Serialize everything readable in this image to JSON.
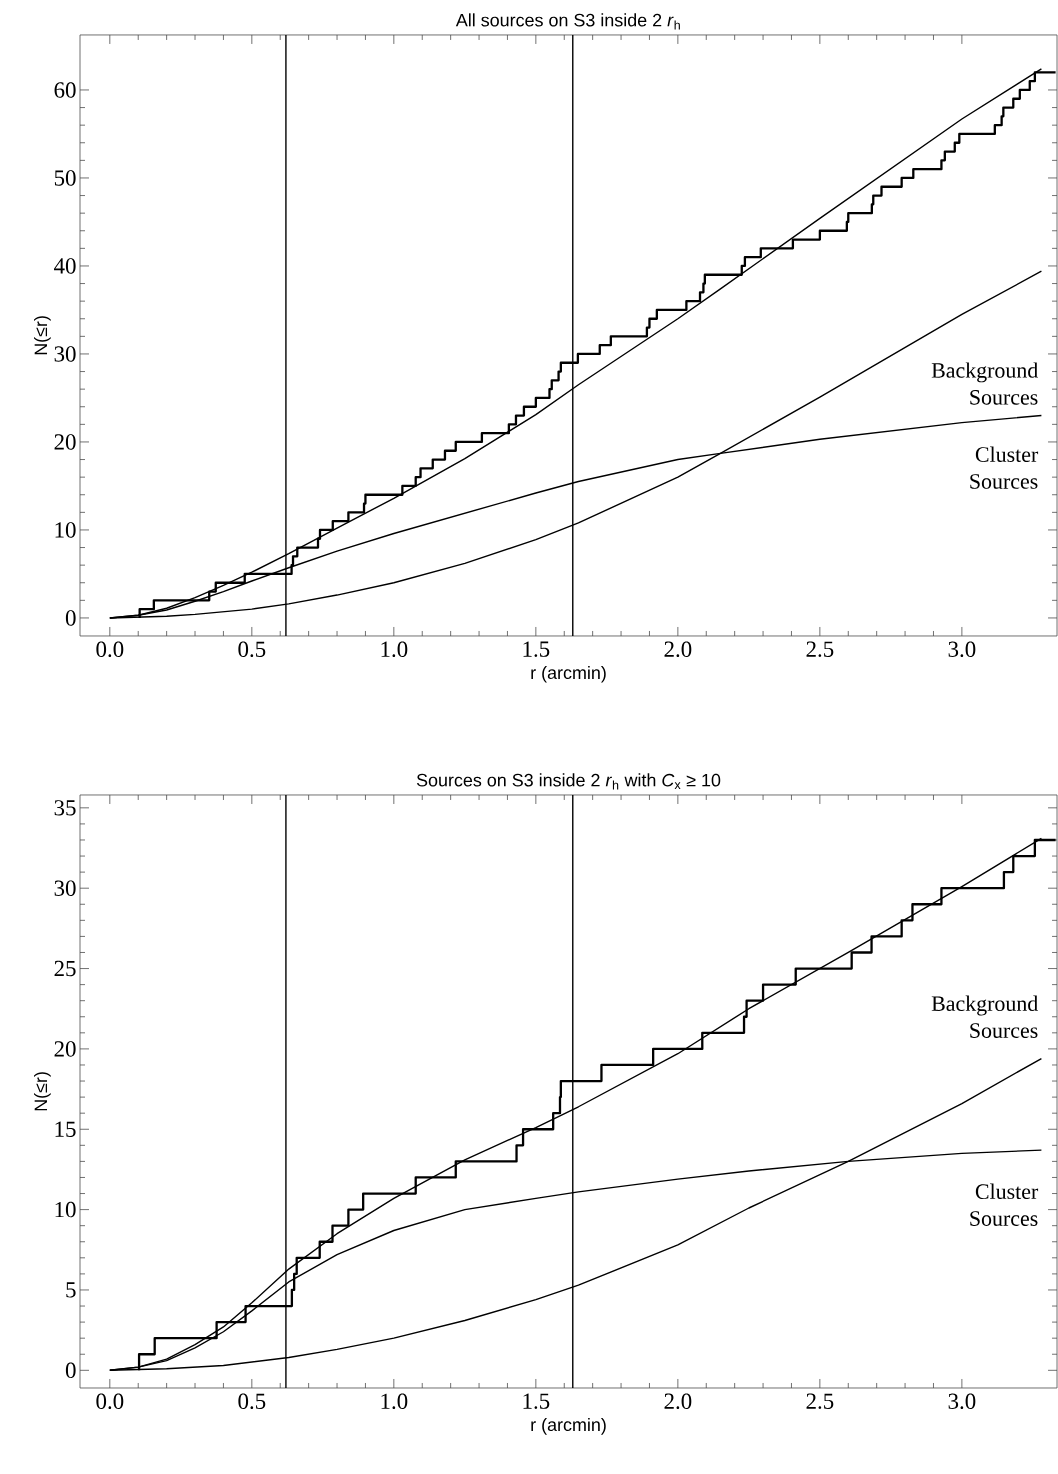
{
  "chart_data": [
    {
      "type": "line",
      "title": "All sources on S3 inside 2 *r*$_{h}$",
      "xlabel": "r (arcmin)",
      "ylabel": "N(≤r)",
      "xlim": [
        -0.105,
        3.335
      ],
      "ylim": [
        -2.05,
        66.25
      ],
      "xticks": [
        {
          "value": 0,
          "label": "0.0"
        },
        {
          "value": 0.5,
          "label": "0.5"
        },
        {
          "value": 1,
          "label": "1.0"
        },
        {
          "value": 1.5,
          "label": "1.5"
        },
        {
          "value": 2,
          "label": "2.0"
        },
        {
          "value": 2.5,
          "label": "2.5"
        },
        {
          "value": 3,
          "label": "3.0"
        }
      ],
      "yticks": [
        0,
        10,
        20,
        30,
        40,
        50,
        60
      ],
      "grid": false,
      "series": [
        {
          "type": "step",
          "color": "#000000",
          "x": [
            0.105,
            0.105,
            0.155,
            0.35,
            0.373,
            0.475,
            0.64,
            0.645,
            0.66,
            0.733,
            0.74,
            0.785,
            0.84,
            0.895,
            0.9,
            1.03,
            1.077,
            1.094,
            1.137,
            1.18,
            1.218,
            1.31,
            1.405,
            1.43,
            1.458,
            1.5,
            1.548,
            1.556,
            1.58,
            1.588,
            1.648,
            1.725,
            1.764,
            1.891,
            1.9,
            1.926,
            2.03,
            2.078,
            2.09,
            2.095,
            2.225,
            2.236,
            2.292,
            2.405,
            2.5,
            2.595,
            2.6,
            2.683,
            2.688,
            2.717,
            2.788,
            2.829,
            2.928,
            2.94,
            2.975,
            2.991,
            3.116,
            3.14,
            3.146,
            3.181,
            3.204,
            3.239,
            3.257,
            3.33
          ],
          "values": [
            0,
            1,
            2,
            3,
            4,
            5,
            6,
            7,
            8,
            9,
            10,
            11,
            12,
            13,
            14,
            15,
            16,
            17,
            18,
            19,
            20,
            21,
            22,
            23,
            24,
            25,
            26,
            27,
            28,
            29,
            30,
            31,
            32,
            33,
            34,
            35,
            36,
            37,
            38,
            39,
            40,
            41,
            42,
            43,
            44,
            45,
            46,
            47,
            48,
            49,
            50,
            51,
            52,
            53,
            54,
            55,
            56,
            57,
            58,
            59,
            60,
            61,
            62,
            62
          ]
        },
        {
          "color": "#000000",
          "x": [
            0,
            0.1,
            0.2,
            0.3,
            0.4,
            0.5,
            0.63,
            0.8,
            1.0,
            1.25,
            1.5,
            1.65,
            2.0,
            2.15,
            2.5,
            3.0,
            3.28
          ],
          "values": [
            0,
            0.3,
            1.1,
            2.3,
            3.7,
            5.2,
            7.3,
            10.2,
            13.6,
            18.1,
            23.1,
            26.5,
            34,
            37.4,
            45.4,
            56.7,
            62.4
          ]
        },
        {
          "color": "#000000",
          "x": [
            0,
            0.1,
            0.2,
            0.3,
            0.4,
            0.5,
            0.63,
            0.8,
            1.0,
            1.25,
            1.5,
            1.65,
            2.0,
            2.15,
            2.5,
            3.0,
            3.28
          ],
          "values": [
            0,
            0.3,
            0.9,
            1.9,
            3.0,
            4.2,
            5.7,
            7.6,
            9.6,
            11.9,
            14.2,
            15.5,
            18.0,
            18.7,
            20.3,
            22.2,
            23.0
          ]
        },
        {
          "color": "#000000",
          "x": [
            0,
            0.2,
            0.3,
            0.4,
            0.5,
            0.63,
            0.8,
            1.0,
            1.25,
            1.5,
            1.65,
            2.0,
            2.15,
            2.5,
            3.0,
            3.28
          ],
          "values": [
            0,
            0.2,
            0.4,
            0.7,
            1.0,
            1.6,
            2.6,
            4.0,
            6.2,
            8.9,
            10.8,
            16.0,
            18.7,
            25.1,
            34.5,
            39.4
          ]
        }
      ],
      "ref_lines": [
        {
          "axis": "x",
          "value": 0.62
        },
        {
          "axis": "x",
          "value": 1.63
        }
      ],
      "annotations": [
        "Background Sources",
        "Cluster Sources"
      ]
    },
    {
      "type": "line",
      "title": "Sources on S3 inside 2 *r*$_{h}$ with *C*$_{x}$ ≥ 10",
      "xlabel": "r (arcmin)",
      "ylabel": "N(≤r)",
      "xlim": [
        -0.105,
        3.335
      ],
      "ylim": [
        -1.1,
        35.8
      ],
      "xticks": [
        {
          "value": 0,
          "label": "0.0"
        },
        {
          "value": 0.5,
          "label": "0.5"
        },
        {
          "value": 1,
          "label": "1.0"
        },
        {
          "value": 1.5,
          "label": "1.5"
        },
        {
          "value": 2,
          "label": "2.0"
        },
        {
          "value": 2.5,
          "label": "2.5"
        },
        {
          "value": 3,
          "label": "3.0"
        }
      ],
      "yticks": [
        0,
        5,
        10,
        15,
        20,
        25,
        30,
        35
      ],
      "grid": false,
      "series": [
        {
          "type": "step",
          "color": "#000000",
          "x": [
            0.103,
            0.103,
            0.158,
            0.376,
            0.478,
            0.641,
            0.649,
            0.658,
            0.739,
            0.784,
            0.84,
            0.892,
            1.077,
            1.218,
            1.432,
            1.455,
            1.561,
            1.585,
            1.588,
            1.731,
            1.913,
            2.086,
            2.233,
            2.242,
            2.3,
            2.415,
            2.612,
            2.682,
            2.788,
            2.826,
            2.928,
            3.148,
            3.181,
            3.257,
            3.33
          ],
          "values": [
            0,
            1,
            2,
            3,
            4,
            5,
            6,
            7,
            8,
            9,
            10,
            11,
            12,
            13,
            14,
            15,
            16,
            17,
            18,
            19,
            20,
            21,
            22,
            23,
            24,
            25,
            26,
            27,
            28,
            29,
            30,
            31,
            32,
            33,
            33
          ]
        },
        {
          "color": "#000000",
          "x": [
            0,
            0.1,
            0.2,
            0.3,
            0.4,
            0.5,
            0.63,
            0.8,
            1.0,
            1.25,
            1.5,
            1.65,
            2.0,
            2.25,
            2.6,
            3.0,
            3.28
          ],
          "values": [
            0,
            0.2,
            0.7,
            1.6,
            2.7,
            4.2,
            6.3,
            8.5,
            10.7,
            13.1,
            15.1,
            16.4,
            19.7,
            22.5,
            26.0,
            30.1,
            33.1
          ]
        },
        {
          "color": "#000000",
          "x": [
            0,
            0.1,
            0.2,
            0.3,
            0.4,
            0.5,
            0.63,
            0.8,
            1.0,
            1.25,
            1.5,
            1.65,
            2.0,
            2.25,
            2.6,
            3.0,
            3.28
          ],
          "values": [
            0,
            0.2,
            0.6,
            1.4,
            2.4,
            3.7,
            5.5,
            7.2,
            8.7,
            10.0,
            10.7,
            11.1,
            11.9,
            12.4,
            13.0,
            13.5,
            13.7
          ]
        },
        {
          "color": "#000000",
          "x": [
            0,
            0.2,
            0.4,
            0.63,
            0.8,
            1.0,
            1.25,
            1.5,
            1.65,
            2.0,
            2.25,
            2.6,
            3.0,
            3.28
          ],
          "values": [
            0,
            0.1,
            0.3,
            0.8,
            1.3,
            2.0,
            3.1,
            4.4,
            5.3,
            7.8,
            10.1,
            13.0,
            16.6,
            19.4
          ]
        }
      ],
      "ref_lines": [
        {
          "axis": "x",
          "value": 0.62
        },
        {
          "axis": "x",
          "value": 1.63
        }
      ],
      "annotations": [
        "Background Sources",
        "Cluster Sources"
      ]
    }
  ]
}
